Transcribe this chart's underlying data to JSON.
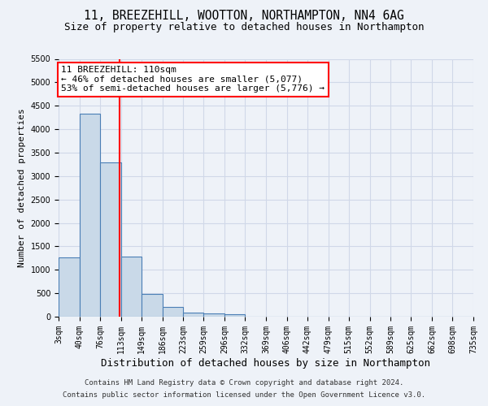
{
  "title": "11, BREEZEHILL, WOOTTON, NORTHAMPTON, NN4 6AG",
  "subtitle": "Size of property relative to detached houses in Northampton",
  "xlabel": "Distribution of detached houses by size in Northampton",
  "ylabel": "Number of detached properties",
  "footnote1": "Contains HM Land Registry data © Crown copyright and database right 2024.",
  "footnote2": "Contains public sector information licensed under the Open Government Licence v3.0.",
  "bin_edges": [
    3,
    40,
    76,
    113,
    149,
    186,
    223,
    259,
    296,
    332,
    369,
    406,
    442,
    479,
    515,
    552,
    589,
    625,
    662,
    698,
    735
  ],
  "bar_heights": [
    1270,
    4330,
    3300,
    1280,
    490,
    215,
    90,
    75,
    60,
    0,
    0,
    0,
    0,
    0,
    0,
    0,
    0,
    0,
    0,
    0
  ],
  "bar_color": "#c9d9e8",
  "bar_edge_color": "#4a7eb5",
  "bar_edge_width": 0.8,
  "red_line_x": 110,
  "annotation_line1": "11 BREEZEHILL: 110sqm",
  "annotation_line2": "← 46% of detached houses are smaller (5,077)",
  "annotation_line3": "53% of semi-detached houses are larger (5,776) →",
  "annotation_box_color": "white",
  "annotation_box_edge_color": "red",
  "annotation_fontsize": 8,
  "ylim": [
    0,
    5500
  ],
  "yticks": [
    0,
    500,
    1000,
    1500,
    2000,
    2500,
    3000,
    3500,
    4000,
    4500,
    5000,
    5500
  ],
  "grid_color": "#d0d8e8",
  "bg_color": "#eef2f8",
  "title_fontsize": 10.5,
  "subtitle_fontsize": 9,
  "xlabel_fontsize": 9,
  "ylabel_fontsize": 8,
  "footnote_fontsize": 6.5,
  "tick_fontsize": 7
}
